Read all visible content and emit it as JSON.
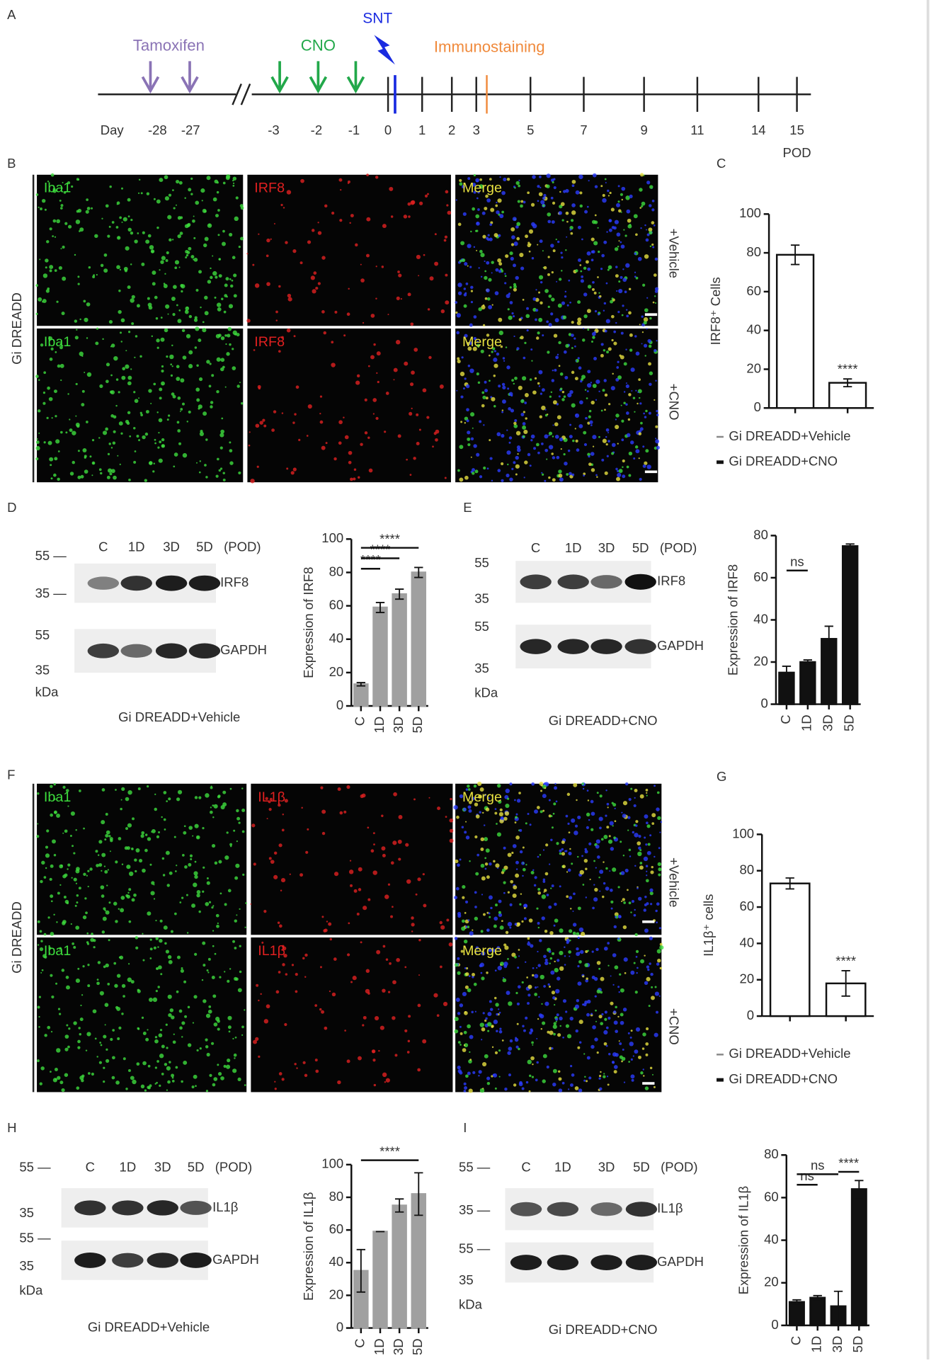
{
  "panels": [
    "A",
    "B",
    "C",
    "D",
    "E",
    "F",
    "G",
    "H",
    "I"
  ],
  "timeline": {
    "labels": [
      "Day",
      "-28",
      "-27",
      "-3",
      "-2",
      "-1",
      "0",
      "1",
      "2",
      "3",
      "5",
      "7",
      "9",
      "11",
      "14",
      "15",
      "POD"
    ],
    "events": [
      "Tamoxifen",
      "CNO",
      "SNT",
      "Immunostaining"
    ]
  },
  "images": [
    {
      "side_label": "Gi DREADD",
      "channels": [
        "Iba1",
        "IRF8",
        "Merge",
        "Iba1",
        "IRF8",
        "Merge"
      ],
      "row_labels": [
        "+Vehicle",
        "+CNO"
      ]
    },
    {
      "side_label": "Gi DREADD",
      "channels": [
        "Iba1",
        "IL1β",
        "Merge",
        "Iba1",
        "IL1β",
        "Merge"
      ],
      "row_labels": [
        "+Vehicle",
        "+CNO"
      ]
    }
  ],
  "blots": [
    {
      "markers": [
        "55 —",
        "35 —",
        "55",
        "35",
        "kDa"
      ],
      "lanes": [
        "C",
        "1D",
        "3D",
        "5D",
        "(POD)"
      ],
      "proteins": [
        "IRF8",
        "GAPDH"
      ],
      "caption": "Gi DREADD+Vehicle"
    },
    {
      "markers": [
        "55",
        "35",
        "55",
        "35",
        "kDa"
      ],
      "lanes": [
        "C",
        "1D",
        "3D",
        "5D",
        "(POD)"
      ],
      "proteins": [
        "IRF8",
        "GAPDH"
      ],
      "caption": "Gi DREADD+CNO"
    },
    {
      "markers": [
        "55 —",
        "35",
        "55 —",
        "35",
        "kDa"
      ],
      "lanes": [
        "C",
        "1D",
        "3D",
        "5D",
        "(POD)"
      ],
      "proteins": [
        "IL1β",
        "GAPDH"
      ],
      "caption": "Gi DREADD+Vehicle"
    },
    {
      "markers": [
        "55 —",
        "35 —",
        "55 —",
        "35",
        "kDa"
      ],
      "lanes": [
        "C",
        "1D",
        "3D",
        "5D",
        "(POD)"
      ],
      "proteins": [
        "IL1β",
        "GAPDH"
      ],
      "caption": "Gi DREADD+CNO"
    }
  ],
  "chart_data": [
    {
      "type": "bar",
      "ylabel": "IRF8⁺ Cells",
      "categories": [
        null,
        null
      ],
      "legend": [
        "Gi DREADD+Vehicle",
        "Gi DREADD+CNO"
      ],
      "values": [
        79,
        13
      ],
      "errors": [
        5,
        2
      ],
      "color": "#ffffff",
      "edgecolor": "#111111",
      "ylim": [
        0,
        100
      ],
      "yticks": [
        0,
        20,
        40,
        60,
        80,
        100
      ],
      "annotations": [
        "****"
      ]
    },
    {
      "type": "bar",
      "ylabel": "Expression of IRF8",
      "categories": [
        "C",
        "1D",
        "3D",
        "5D"
      ],
      "values": [
        13,
        59,
        67,
        80
      ],
      "errors": [
        1,
        3,
        3,
        3
      ],
      "color": "#a0a0a0",
      "edgecolor": "#a0a0a0",
      "ylim": [
        0,
        100
      ],
      "yticks": [
        0,
        20,
        40,
        60,
        80,
        100
      ],
      "annotations": [
        "****",
        "****",
        "****"
      ]
    },
    {
      "type": "bar",
      "ylabel": "Expression of IRF8",
      "categories": [
        "C",
        "1D",
        "3D",
        "5D"
      ],
      "values": [
        15,
        20,
        31,
        75
      ],
      "errors": [
        3,
        1,
        6,
        1
      ],
      "color": "#111111",
      "edgecolor": "#111111",
      "ylim": [
        0,
        80
      ],
      "yticks": [
        0,
        20,
        40,
        60,
        80
      ],
      "annotations": [
        "ns"
      ]
    },
    {
      "type": "bar",
      "ylabel": "IL1β⁺ cells",
      "categories": [
        null,
        null
      ],
      "legend": [
        "Gi DREADD+Vehicle",
        "Gi DREADD+CNO"
      ],
      "values": [
        73,
        18
      ],
      "errors": [
        3,
        7
      ],
      "color": "#ffffff",
      "edgecolor": "#111111",
      "ylim": [
        0,
        100
      ],
      "yticks": [
        0,
        20,
        40,
        60,
        80,
        100
      ],
      "annotations": [
        "****"
      ]
    },
    {
      "type": "bar",
      "ylabel": "Expression of IL1β",
      "categories": [
        "C",
        "1D",
        "3D",
        "5D"
      ],
      "values": [
        35,
        59,
        75,
        82
      ],
      "errors": [
        13,
        0,
        4,
        13
      ],
      "color": "#a0a0a0",
      "edgecolor": "#a0a0a0",
      "ylim": [
        0,
        100
      ],
      "yticks": [
        0,
        20,
        40,
        60,
        80,
        100
      ],
      "annotations": [
        "****"
      ]
    },
    {
      "type": "bar",
      "ylabel": "Expression of IL1β",
      "categories": [
        "C",
        "1D",
        "3D",
        "5D"
      ],
      "values": [
        11,
        13,
        9,
        64
      ],
      "errors": [
        1,
        1,
        7,
        4
      ],
      "color": "#111111",
      "edgecolor": "#111111",
      "ylim": [
        0,
        80
      ],
      "yticks": [
        0,
        20,
        40,
        60,
        80
      ],
      "annotations": [
        "ns",
        "ns",
        "****"
      ]
    }
  ]
}
